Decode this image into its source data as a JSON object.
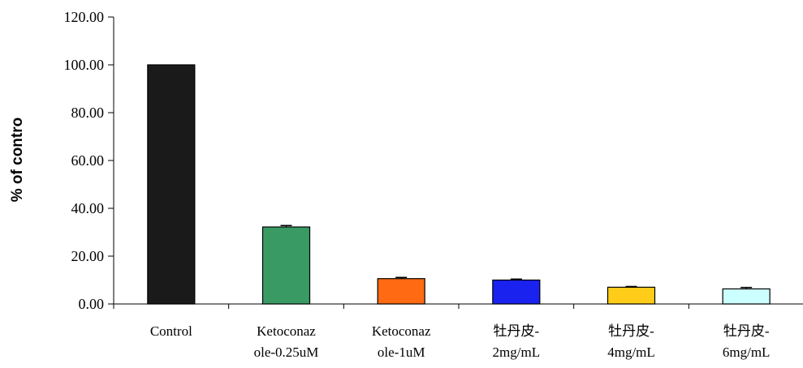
{
  "chart_data": {
    "type": "bar",
    "title": "",
    "xlabel": "",
    "ylabel": "% of contro",
    "ylim": [
      0,
      120
    ],
    "yticks": [
      "0.00",
      "20.00",
      "40.00",
      "60.00",
      "80.00",
      "100.00",
      "120.00"
    ],
    "categories": [
      [
        "Control"
      ],
      [
        "Ketoconaz",
        "ole-0.25uM"
      ],
      [
        "Ketoconaz",
        "ole-1uM"
      ],
      [
        "牡丹皮-",
        "2mg/mL"
      ],
      [
        "牡丹皮-",
        "4mg/mL"
      ],
      [
        "牡丹皮-",
        "6mg/mL"
      ]
    ],
    "values": [
      100.0,
      32.2,
      10.6,
      10.0,
      7.0,
      6.3
    ],
    "errors": [
      0.0,
      0.6,
      0.5,
      0.4,
      0.3,
      0.6
    ],
    "colors": [
      "#1a1a1a",
      "#3a9a64",
      "#ff6a13",
      "#1a22f0",
      "#ffcc1a",
      "#ccffff"
    ],
    "grid": false,
    "legend": "none"
  }
}
